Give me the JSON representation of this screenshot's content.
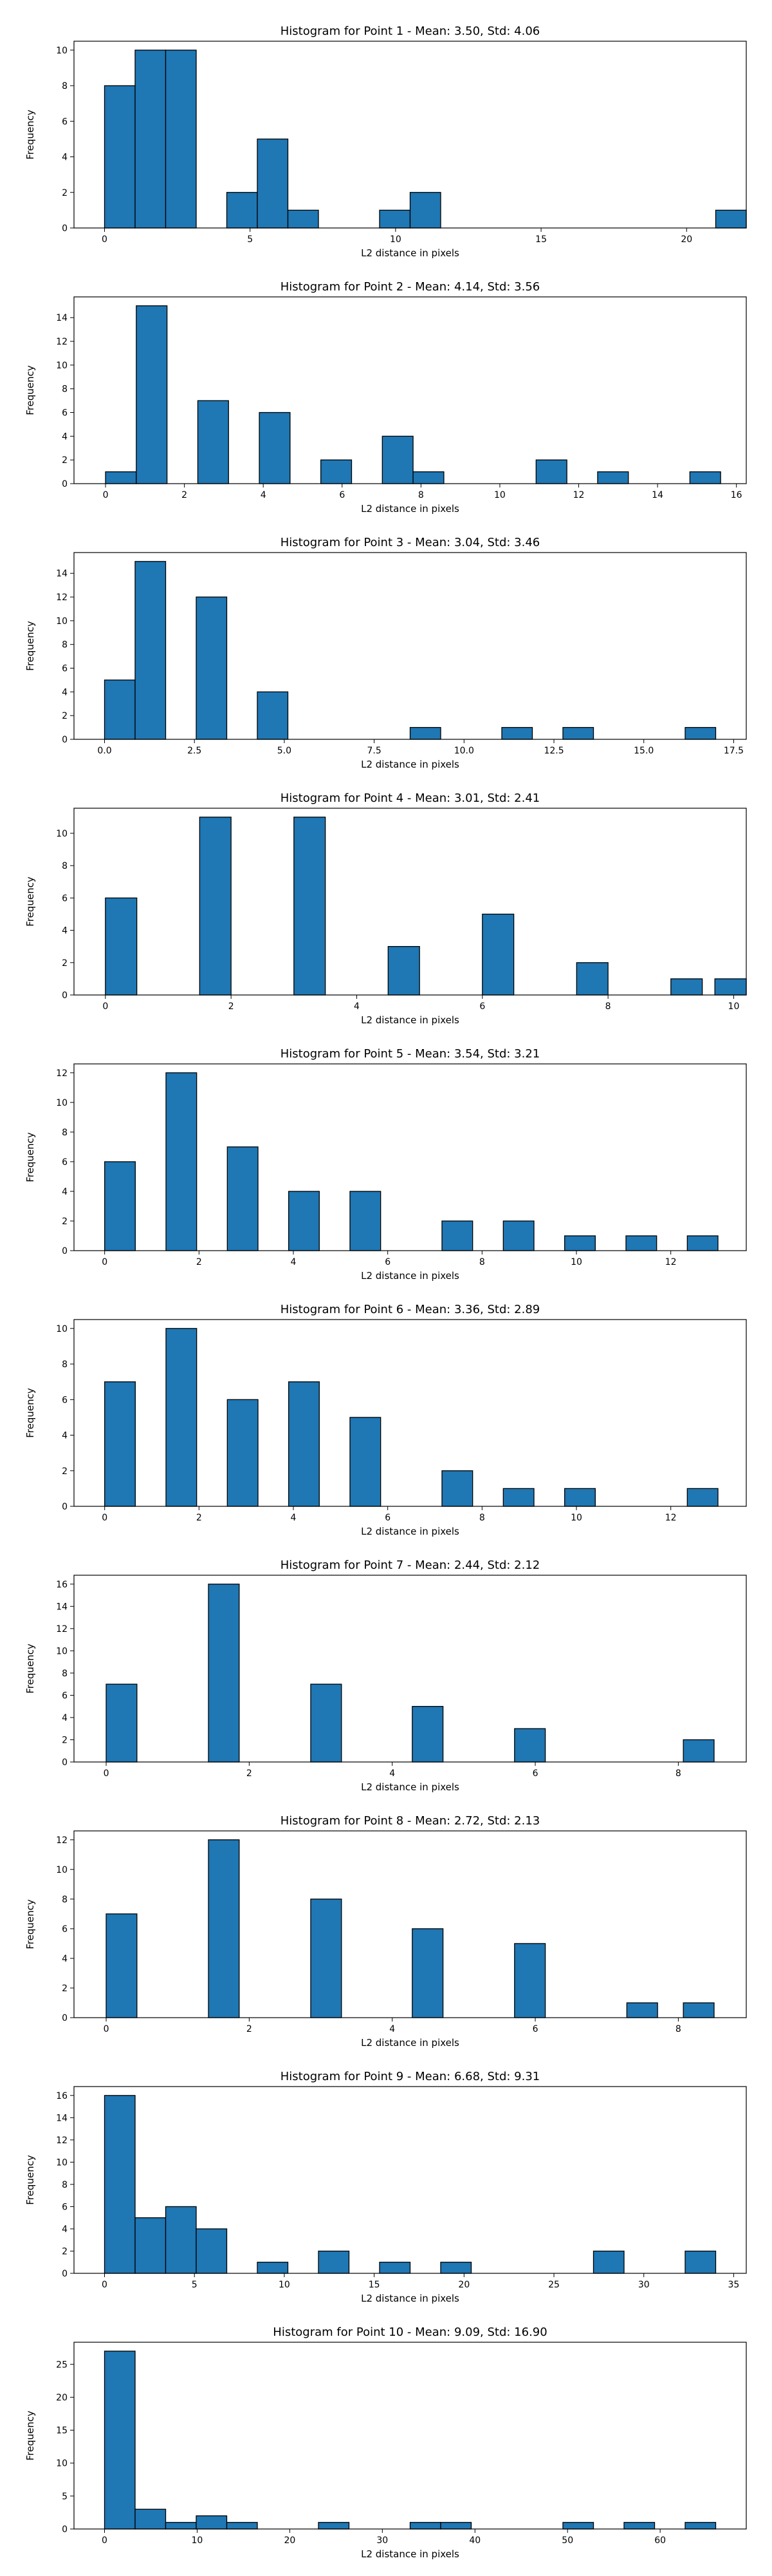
{
  "chart_data": [
    {
      "type": "bar",
      "title": "Histogram for Point 1 - Mean: 3.50, Std: 4.06",
      "xlabel": "L2 distance in pixels",
      "ylabel": "Frequency",
      "xlim": [
        -1.05,
        22.05
      ],
      "ylim": [
        0,
        10.5
      ],
      "xticks": [
        0,
        5,
        10,
        15,
        20
      ],
      "yticks": [
        0,
        2,
        4,
        6,
        8,
        10
      ],
      "xtick_labels": [
        "0",
        "5",
        "10",
        "15",
        "20"
      ],
      "ytick_labels": [
        "0",
        "2",
        "4",
        "6",
        "8",
        "10"
      ],
      "bin_width": 1.05,
      "bins": [
        {
          "x": 0.0,
          "count": 8
        },
        {
          "x": 1.05,
          "count": 10
        },
        {
          "x": 2.1,
          "count": 10
        },
        {
          "x": 4.2,
          "count": 2
        },
        {
          "x": 5.25,
          "count": 5
        },
        {
          "x": 6.3,
          "count": 1
        },
        {
          "x": 9.45,
          "count": 1
        },
        {
          "x": 10.5,
          "count": 2
        },
        {
          "x": 21.0,
          "count": 1
        }
      ]
    },
    {
      "type": "bar",
      "title": "Histogram for Point 2 - Mean: 4.14, Std: 3.56",
      "xlabel": "L2 distance in pixels",
      "ylabel": "Frequency",
      "xlim": [
        -0.8,
        16.25
      ],
      "ylim": [
        0,
        15.75
      ],
      "xticks": [
        0,
        2,
        4,
        6,
        8,
        10,
        12,
        14,
        16
      ],
      "yticks": [
        0,
        2,
        4,
        6,
        8,
        10,
        12,
        14
      ],
      "xtick_labels": [
        "0",
        "2",
        "4",
        "6",
        "8",
        "10",
        "12",
        "14",
        "16"
      ],
      "ytick_labels": [
        "0",
        "2",
        "4",
        "6",
        "8",
        "10",
        "12",
        "14"
      ],
      "bin_width": 0.78,
      "bins": [
        {
          "x": 0.0,
          "count": 1
        },
        {
          "x": 0.78,
          "count": 15
        },
        {
          "x": 2.34,
          "count": 7
        },
        {
          "x": 3.9,
          "count": 6
        },
        {
          "x": 5.46,
          "count": 2
        },
        {
          "x": 7.02,
          "count": 4
        },
        {
          "x": 7.8,
          "count": 1
        },
        {
          "x": 10.92,
          "count": 2
        },
        {
          "x": 12.48,
          "count": 1
        },
        {
          "x": 14.82,
          "count": 1
        }
      ]
    },
    {
      "type": "bar",
      "title": "Histogram for Point 3 - Mean: 3.04, Std: 3.46",
      "xlabel": "L2 distance in pixels",
      "ylabel": "Frequency",
      "xlim": [
        -0.85,
        17.85
      ],
      "ylim": [
        0,
        15.75
      ],
      "xticks": [
        0,
        2.5,
        5,
        7.5,
        10,
        12.5,
        15,
        17.5
      ],
      "yticks": [
        0,
        2,
        4,
        6,
        8,
        10,
        12,
        14
      ],
      "xtick_labels": [
        "0.0",
        "2.5",
        "5.0",
        "7.5",
        "10.0",
        "12.5",
        "15.0",
        "17.5"
      ],
      "ytick_labels": [
        "0",
        "2",
        "4",
        "6",
        "8",
        "10",
        "12",
        "14"
      ],
      "bin_width": 0.85,
      "bins": [
        {
          "x": 0.0,
          "count": 5
        },
        {
          "x": 0.85,
          "count": 15
        },
        {
          "x": 2.55,
          "count": 12
        },
        {
          "x": 4.25,
          "count": 4
        },
        {
          "x": 8.5,
          "count": 1
        },
        {
          "x": 11.05,
          "count": 1
        },
        {
          "x": 12.75,
          "count": 1
        },
        {
          "x": 16.15,
          "count": 1
        }
      ]
    },
    {
      "type": "bar",
      "title": "Histogram for Point 4 - Mean: 3.01, Std: 2.41",
      "xlabel": "L2 distance in pixels",
      "ylabel": "Frequency",
      "xlim": [
        -0.5,
        10.2
      ],
      "ylim": [
        0,
        11.55
      ],
      "xticks": [
        0,
        2,
        4,
        6,
        8,
        10
      ],
      "yticks": [
        0,
        2,
        4,
        6,
        8,
        10
      ],
      "xtick_labels": [
        "0",
        "2",
        "4",
        "6",
        "8",
        "10"
      ],
      "ytick_labels": [
        "0",
        "2",
        "4",
        "6",
        "8",
        "10"
      ],
      "bin_width": 0.5,
      "bins": [
        {
          "x": 0.0,
          "count": 6
        },
        {
          "x": 1.5,
          "count": 11
        },
        {
          "x": 3.0,
          "count": 11
        },
        {
          "x": 4.5,
          "count": 3
        },
        {
          "x": 6.0,
          "count": 5
        },
        {
          "x": 7.5,
          "count": 2
        },
        {
          "x": 9.0,
          "count": 1
        },
        {
          "x": 9.7,
          "count": 1
        }
      ]
    },
    {
      "type": "bar",
      "title": "Histogram for Point 5 - Mean: 3.54, Std: 3.21",
      "xlabel": "L2 distance in pixels",
      "ylabel": "Frequency",
      "xlim": [
        -0.65,
        13.6
      ],
      "ylim": [
        0,
        12.6
      ],
      "xticks": [
        0,
        2,
        4,
        6,
        8,
        10,
        12
      ],
      "yticks": [
        0,
        2,
        4,
        6,
        8,
        10,
        12
      ],
      "xtick_labels": [
        "0",
        "2",
        "4",
        "6",
        "8",
        "10",
        "12"
      ],
      "ytick_labels": [
        "0",
        "2",
        "4",
        "6",
        "8",
        "10",
        "12"
      ],
      "bin_width": 0.65,
      "bins": [
        {
          "x": 0.0,
          "count": 6
        },
        {
          "x": 1.3,
          "count": 12
        },
        {
          "x": 2.6,
          "count": 7
        },
        {
          "x": 3.9,
          "count": 4
        },
        {
          "x": 5.2,
          "count": 4
        },
        {
          "x": 7.15,
          "count": 2
        },
        {
          "x": 8.45,
          "count": 2
        },
        {
          "x": 9.75,
          "count": 1
        },
        {
          "x": 11.05,
          "count": 1
        },
        {
          "x": 12.35,
          "count": 1
        }
      ]
    },
    {
      "type": "bar",
      "title": "Histogram for Point 6 - Mean: 3.36, Std: 2.89",
      "xlabel": "L2 distance in pixels",
      "ylabel": "Frequency",
      "xlim": [
        -0.65,
        13.6
      ],
      "ylim": [
        0,
        10.5
      ],
      "xticks": [
        0,
        2,
        4,
        6,
        8,
        10,
        12
      ],
      "yticks": [
        0,
        2,
        4,
        6,
        8,
        10
      ],
      "xtick_labels": [
        "0",
        "2",
        "4",
        "6",
        "8",
        "10",
        "12"
      ],
      "ytick_labels": [
        "0",
        "2",
        "4",
        "6",
        "8",
        "10"
      ],
      "bin_width": 0.65,
      "bins": [
        {
          "x": 0.0,
          "count": 7
        },
        {
          "x": 1.3,
          "count": 10
        },
        {
          "x": 2.6,
          "count": 6
        },
        {
          "x": 3.9,
          "count": 7
        },
        {
          "x": 5.2,
          "count": 5
        },
        {
          "x": 7.15,
          "count": 2
        },
        {
          "x": 8.45,
          "count": 1
        },
        {
          "x": 9.75,
          "count": 1
        },
        {
          "x": 12.35,
          "count": 1
        }
      ]
    },
    {
      "type": "bar",
      "title": "Histogram for Point 7 - Mean: 2.44, Std: 2.12",
      "xlabel": "L2 distance in pixels",
      "ylabel": "Frequency",
      "xlim": [
        -0.45,
        8.95
      ],
      "ylim": [
        0,
        16.8
      ],
      "xticks": [
        0,
        2,
        4,
        6,
        8
      ],
      "yticks": [
        0,
        2,
        4,
        6,
        8,
        10,
        12,
        14,
        16
      ],
      "xtick_labels": [
        "0",
        "2",
        "4",
        "6",
        "8"
      ],
      "ytick_labels": [
        "0",
        "2",
        "4",
        "6",
        "8",
        "10",
        "12",
        "14",
        "16"
      ],
      "bin_width": 0.43,
      "bins": [
        {
          "x": 0.0,
          "count": 7
        },
        {
          "x": 1.43,
          "count": 16
        },
        {
          "x": 2.86,
          "count": 7
        },
        {
          "x": 4.28,
          "count": 5
        },
        {
          "x": 5.71,
          "count": 3
        },
        {
          "x": 8.07,
          "count": 2
        }
      ]
    },
    {
      "type": "bar",
      "title": "Histogram for Point 8 - Mean: 2.72, Std: 2.13",
      "xlabel": "L2 distance in pixels",
      "ylabel": "Frequency",
      "xlim": [
        -0.45,
        8.95
      ],
      "ylim": [
        0,
        12.6
      ],
      "xticks": [
        0,
        2,
        4,
        6,
        8
      ],
      "yticks": [
        0,
        2,
        4,
        6,
        8,
        10,
        12
      ],
      "xtick_labels": [
        "0",
        "2",
        "4",
        "6",
        "8"
      ],
      "ytick_labels": [
        "0",
        "2",
        "4",
        "6",
        "8",
        "10",
        "12"
      ],
      "bin_width": 0.43,
      "bins": [
        {
          "x": 0.0,
          "count": 7
        },
        {
          "x": 1.43,
          "count": 12
        },
        {
          "x": 2.86,
          "count": 8
        },
        {
          "x": 4.28,
          "count": 6
        },
        {
          "x": 5.71,
          "count": 5
        },
        {
          "x": 7.28,
          "count": 1
        },
        {
          "x": 8.07,
          "count": 1
        }
      ]
    },
    {
      "type": "bar",
      "title": "Histogram for Point 9 - Mean: 6.68, Std: 9.31",
      "xlabel": "L2 distance in pixels",
      "ylabel": "Frequency",
      "xlim": [
        -1.7,
        35.7
      ],
      "ylim": [
        0,
        16.8
      ],
      "xticks": [
        0,
        5,
        10,
        15,
        20,
        25,
        30,
        35
      ],
      "yticks": [
        0,
        2,
        4,
        6,
        8,
        10,
        12,
        14,
        16
      ],
      "xtick_labels": [
        "0",
        "5",
        "10",
        "15",
        "20",
        "25",
        "30",
        "35"
      ],
      "ytick_labels": [
        "0",
        "2",
        "4",
        "6",
        "8",
        "10",
        "12",
        "14",
        "16"
      ],
      "bin_width": 1.7,
      "bins": [
        {
          "x": 0.0,
          "count": 16
        },
        {
          "x": 1.7,
          "count": 5
        },
        {
          "x": 3.4,
          "count": 6
        },
        {
          "x": 5.1,
          "count": 4
        },
        {
          "x": 8.5,
          "count": 1
        },
        {
          "x": 11.9,
          "count": 2
        },
        {
          "x": 15.3,
          "count": 1
        },
        {
          "x": 18.7,
          "count": 1
        },
        {
          "x": 27.2,
          "count": 2
        },
        {
          "x": 32.3,
          "count": 2
        }
      ]
    },
    {
      "type": "bar",
      "title": "Histogram for Point 10 - Mean: 9.09, Std: 16.90",
      "xlabel": "L2 distance in pixels",
      "ylabel": "Frequency",
      "xlim": [
        -3.3,
        69.3
      ],
      "ylim": [
        0,
        28.35
      ],
      "xticks": [
        0,
        10,
        20,
        30,
        40,
        50,
        60
      ],
      "yticks": [
        0,
        5,
        10,
        15,
        20,
        25
      ],
      "xtick_labels": [
        "0",
        "10",
        "20",
        "30",
        "40",
        "50",
        "60"
      ],
      "ytick_labels": [
        "0",
        "5",
        "10",
        "15",
        "20",
        "25"
      ],
      "bin_width": 3.3,
      "bins": [
        {
          "x": 0.0,
          "count": 27
        },
        {
          "x": 3.3,
          "count": 3
        },
        {
          "x": 6.6,
          "count": 1
        },
        {
          "x": 9.9,
          "count": 2
        },
        {
          "x": 13.2,
          "count": 1
        },
        {
          "x": 23.1,
          "count": 1
        },
        {
          "x": 33.0,
          "count": 1
        },
        {
          "x": 36.3,
          "count": 1
        },
        {
          "x": 49.5,
          "count": 1
        },
        {
          "x": 56.1,
          "count": 1
        },
        {
          "x": 62.7,
          "count": 1
        }
      ]
    }
  ]
}
